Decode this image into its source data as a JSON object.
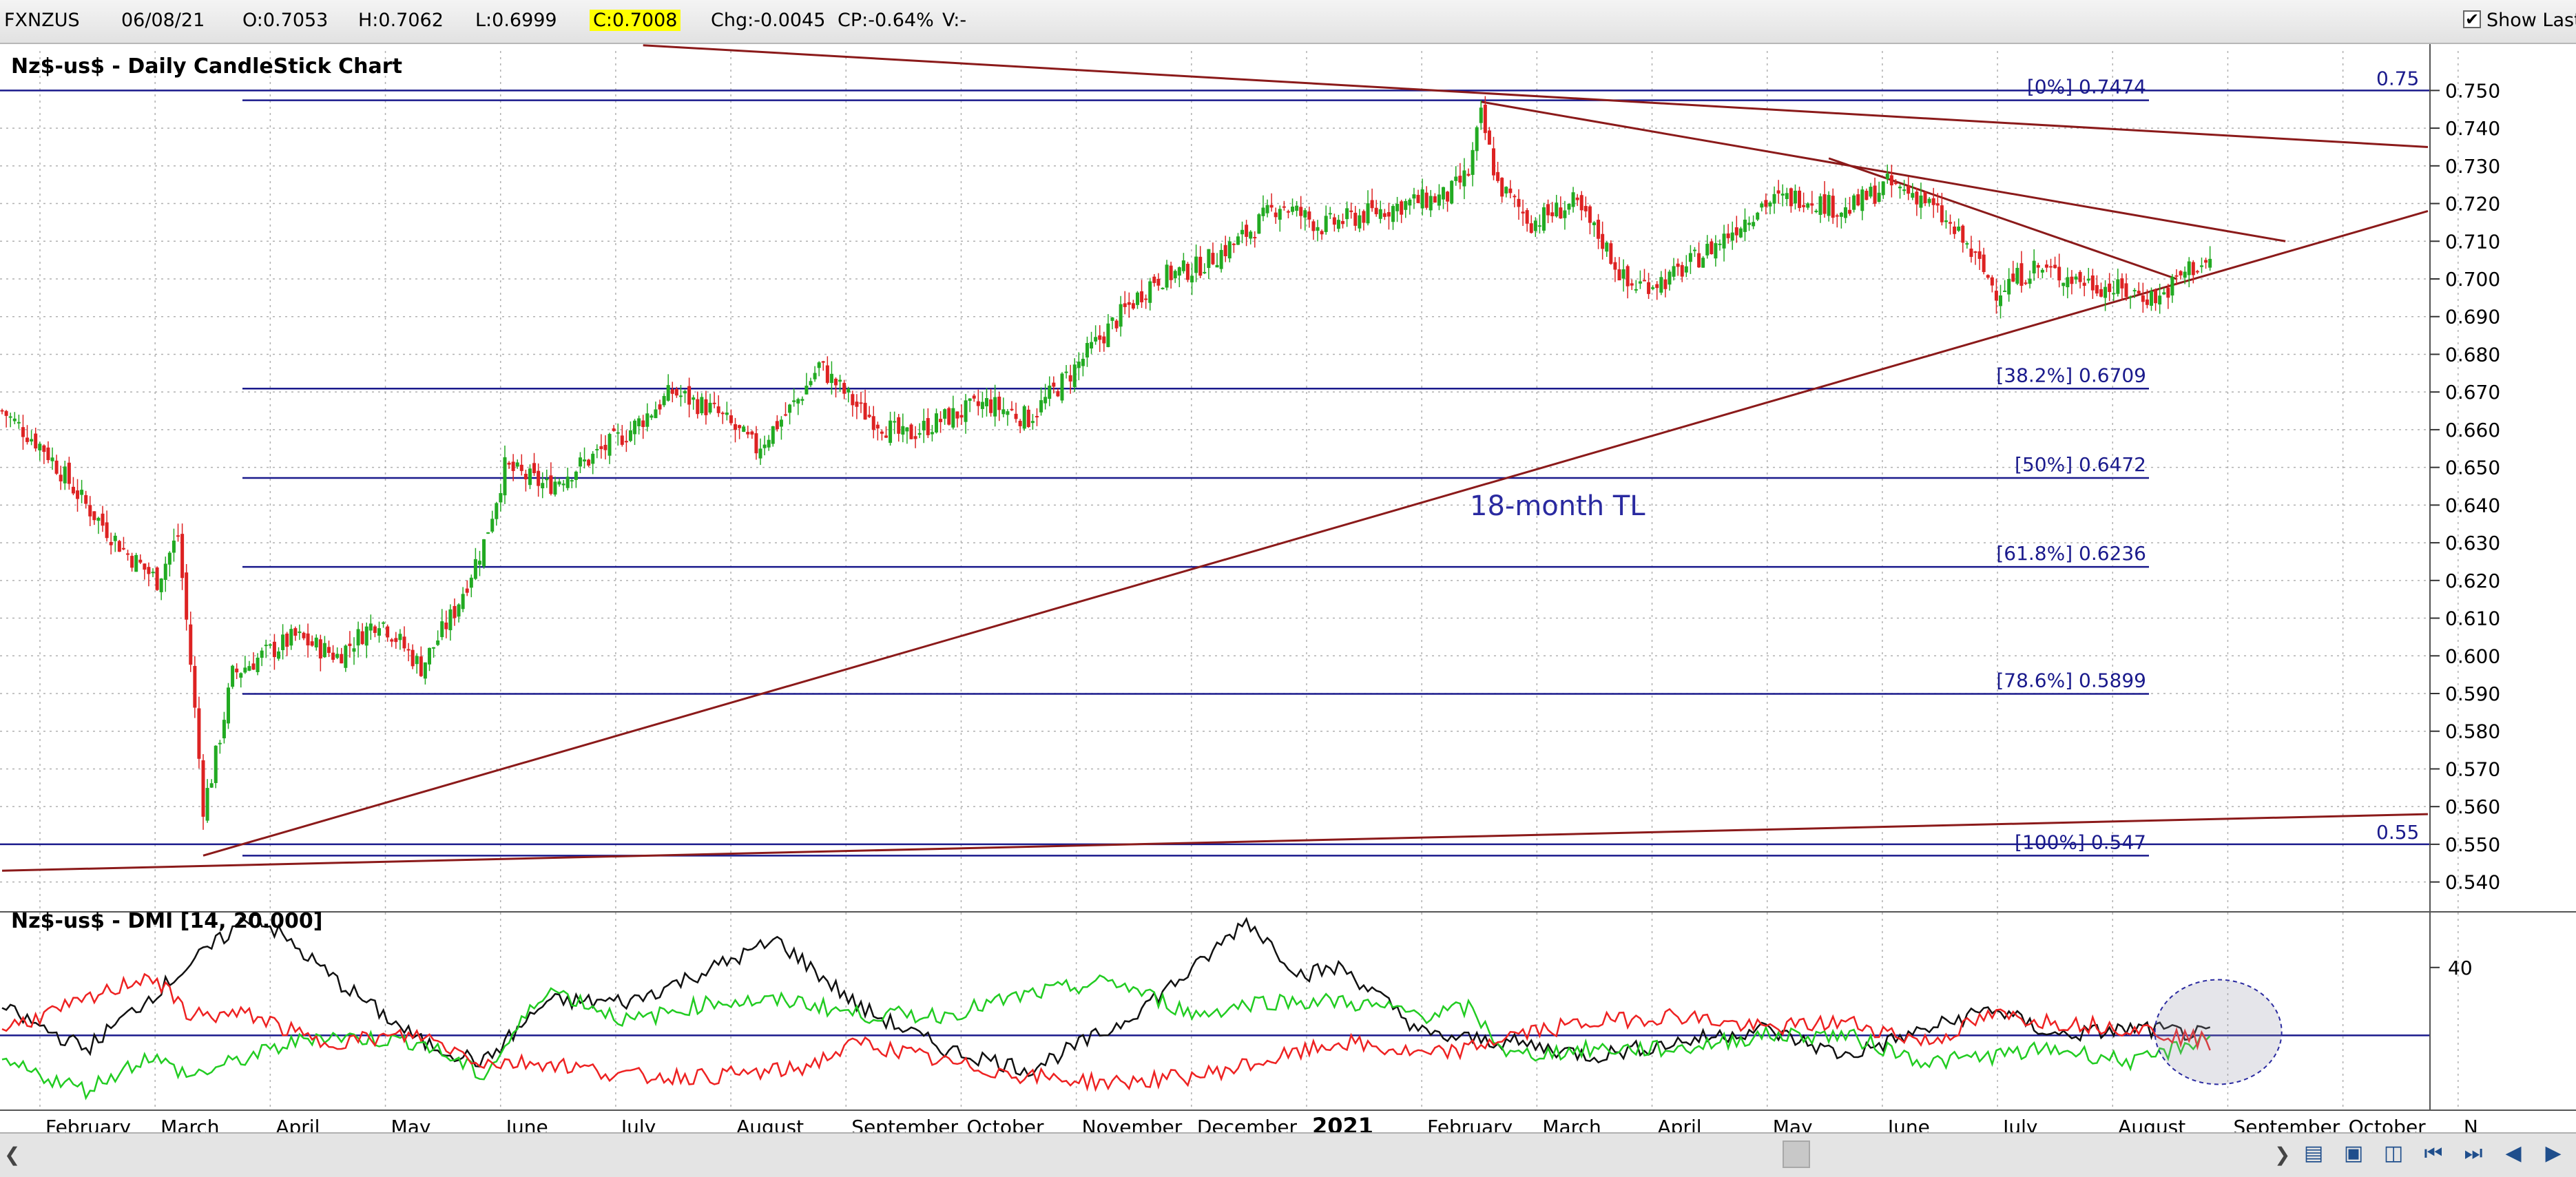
{
  "toolbar": {
    "symbol": "FXNZUS",
    "date": "06/08/21",
    "open": "O:0.7053",
    "high": "H:0.7062",
    "low": "L:0.6999",
    "close": "C:0.7008",
    "change": "Chg:-0.0045",
    "change_pct": "CP:-0.64%",
    "volume": "V:-",
    "show_last_label": "Show Last",
    "show_last_checked": true
  },
  "colors": {
    "bull_candle": "#22aa22",
    "bear_candle": "#dd2222",
    "fib_line": "#1a1a8c",
    "trendline": "#8b1a1a",
    "di_plus": "#22cc22",
    "di_minus": "#ee2222",
    "adx": "#111111",
    "grid": "#b0b0b0",
    "close_highlight": "#ffff00"
  },
  "chart_data": [
    {
      "type": "candlestick",
      "title": "Nz$-us$ - Daily CandleStick Chart",
      "annotation": "18-month TL",
      "x_months": [
        "February",
        "March",
        "April",
        "May",
        "June",
        "July",
        "August",
        "September",
        "October",
        "November",
        "December",
        "2021",
        "February",
        "March",
        "April",
        "May",
        "June",
        "July",
        "August",
        "September",
        "October",
        "N"
      ],
      "y_ticks": [
        "0.750",
        "0.740",
        "0.730",
        "0.720",
        "0.710",
        "0.700",
        "0.690",
        "0.680",
        "0.670",
        "0.660",
        "0.650",
        "0.640",
        "0.630",
        "0.620",
        "0.610",
        "0.600",
        "0.590",
        "0.580",
        "0.570",
        "0.560",
        "0.550",
        "0.540"
      ],
      "ylim": [
        0.535,
        0.755
      ],
      "horizontal_labels": [
        {
          "text": "0.75",
          "value": 0.75
        },
        {
          "text": "0.55",
          "value": 0.55
        }
      ],
      "fib_levels": [
        {
          "label": "[0%] 0.7474",
          "value": 0.7474
        },
        {
          "label": "[38.2%] 0.6709",
          "value": 0.6709
        },
        {
          "label": "[50%] 0.6472",
          "value": 0.6472
        },
        {
          "label": "[61.8%] 0.6236",
          "value": 0.6236
        },
        {
          "label": "[78.6%] 0.5899",
          "value": 0.5899
        },
        {
          "label": "[100%] 0.547",
          "value": 0.547
        }
      ],
      "price_anchors": [
        [
          0,
          0.665
        ],
        [
          10,
          0.655
        ],
        [
          20,
          0.64
        ],
        [
          30,
          0.627
        ],
        [
          37,
          0.62
        ],
        [
          42,
          0.632
        ],
        [
          45,
          0.598
        ],
        [
          48,
          0.56
        ],
        [
          50,
          0.568
        ],
        [
          55,
          0.595
        ],
        [
          62,
          0.6
        ],
        [
          70,
          0.605
        ],
        [
          80,
          0.6
        ],
        [
          90,
          0.61
        ],
        [
          100,
          0.597
        ],
        [
          108,
          0.612
        ],
        [
          115,
          0.63
        ],
        [
          120,
          0.65
        ],
        [
          130,
          0.645
        ],
        [
          140,
          0.652
        ],
        [
          150,
          0.66
        ],
        [
          160,
          0.67
        ],
        [
          170,
          0.665
        ],
        [
          180,
          0.655
        ],
        [
          190,
          0.668
        ],
        [
          195,
          0.677
        ],
        [
          205,
          0.665
        ],
        [
          215,
          0.658
        ],
        [
          225,
          0.663
        ],
        [
          235,
          0.667
        ],
        [
          245,
          0.663
        ],
        [
          255,
          0.675
        ],
        [
          265,
          0.688
        ],
        [
          275,
          0.7
        ],
        [
          285,
          0.703
        ],
        [
          295,
          0.71
        ],
        [
          305,
          0.72
        ],
        [
          315,
          0.714
        ],
        [
          325,
          0.717
        ],
        [
          335,
          0.72
        ],
        [
          345,
          0.722
        ],
        [
          350,
          0.728
        ],
        [
          353,
          0.743
        ],
        [
          357,
          0.725
        ],
        [
          365,
          0.715
        ],
        [
          375,
          0.72
        ],
        [
          382,
          0.71
        ],
        [
          388,
          0.698
        ],
        [
          398,
          0.7
        ],
        [
          410,
          0.71
        ],
        [
          420,
          0.72
        ],
        [
          430,
          0.722
        ],
        [
          440,
          0.718
        ],
        [
          450,
          0.725
        ],
        [
          458,
          0.722
        ],
        [
          468,
          0.71
        ],
        [
          476,
          0.697
        ],
        [
          485,
          0.703
        ],
        [
          495,
          0.7
        ],
        [
          505,
          0.697
        ],
        [
          515,
          0.695
        ],
        [
          522,
          0.703
        ],
        [
          527,
          0.704
        ]
      ],
      "trendlines": [
        {
          "label": "18-month TL",
          "from": [
            48,
            0.547
          ],
          "to": [
            579,
            0.718
          ]
        },
        {
          "from": [
            0,
            0.543
          ],
          "to": [
            579,
            0.558
          ]
        },
        {
          "from": [
            153,
            0.762
          ],
          "to": [
            579,
            0.735
          ]
        },
        {
          "from": [
            353,
            0.747
          ],
          "to": [
            545,
            0.71
          ]
        },
        {
          "from": [
            436,
            0.732
          ],
          "to": [
            519,
            0.7
          ]
        }
      ]
    },
    {
      "type": "line",
      "title": "Nz$-us$ - DMI [14, 20.000]",
      "y_ticks": [
        "40"
      ],
      "ylim": [
        0,
        58
      ],
      "reference_line": 20,
      "series": [
        {
          "role": "ADX",
          "anchors": [
            [
              0,
              28
            ],
            [
              20,
              16
            ],
            [
              40,
              36
            ],
            [
              60,
              56
            ],
            [
              80,
              36
            ],
            [
              100,
              18
            ],
            [
              115,
              12
            ],
            [
              130,
              30
            ],
            [
              150,
              30
            ],
            [
              170,
              40
            ],
            [
              185,
              48
            ],
            [
              205,
              28
            ],
            [
              225,
              16
            ],
            [
              245,
              10
            ],
            [
              265,
              22
            ],
            [
              285,
              40
            ],
            [
              297,
              54
            ],
            [
              310,
              38
            ],
            [
              320,
              40
            ],
            [
              340,
              20
            ],
            [
              360,
              18
            ],
            [
              380,
              14
            ],
            [
              400,
              18
            ],
            [
              420,
              22
            ],
            [
              440,
              14
            ],
            [
              460,
              22
            ],
            [
              475,
              28
            ],
            [
              490,
              20
            ],
            [
              510,
              22
            ],
            [
              527,
              20
            ]
          ]
        },
        {
          "role": "+DI",
          "anchors": [
            [
              0,
              12
            ],
            [
              20,
              4
            ],
            [
              35,
              14
            ],
            [
              45,
              8
            ],
            [
              60,
              14
            ],
            [
              75,
              20
            ],
            [
              100,
              18
            ],
            [
              115,
              8
            ],
            [
              130,
              34
            ],
            [
              150,
              24
            ],
            [
              170,
              30
            ],
            [
              190,
              30
            ],
            [
              205,
              26
            ],
            [
              225,
              26
            ],
            [
              245,
              32
            ],
            [
              265,
              36
            ],
            [
              285,
              26
            ],
            [
              300,
              30
            ],
            [
              320,
              30
            ],
            [
              340,
              26
            ],
            [
              350,
              28
            ],
            [
              360,
              14
            ],
            [
              380,
              16
            ],
            [
              400,
              16
            ],
            [
              420,
              20
            ],
            [
              440,
              20
            ],
            [
              460,
              12
            ],
            [
              475,
              14
            ],
            [
              490,
              16
            ],
            [
              510,
              12
            ],
            [
              527,
              20
            ]
          ]
        },
        {
          "role": "-DI",
          "anchors": [
            [
              0,
              22
            ],
            [
              20,
              30
            ],
            [
              35,
              38
            ],
            [
              45,
              26
            ],
            [
              60,
              26
            ],
            [
              75,
              18
            ],
            [
              100,
              20
            ],
            [
              115,
              12
            ],
            [
              130,
              12
            ],
            [
              150,
              8
            ],
            [
              170,
              8
            ],
            [
              190,
              10
            ],
            [
              205,
              18
            ],
            [
              225,
              12
            ],
            [
              245,
              8
            ],
            [
              265,
              6
            ],
            [
              285,
              8
            ],
            [
              300,
              12
            ],
            [
              320,
              18
            ],
            [
              340,
              14
            ],
            [
              350,
              16
            ],
            [
              360,
              20
            ],
            [
              380,
              24
            ],
            [
              400,
              26
            ],
            [
              420,
              22
            ],
            [
              440,
              24
            ],
            [
              460,
              18
            ],
            [
              475,
              26
            ],
            [
              490,
              24
            ],
            [
              510,
              22
            ],
            [
              527,
              18
            ]
          ]
        }
      ]
    }
  ]
}
